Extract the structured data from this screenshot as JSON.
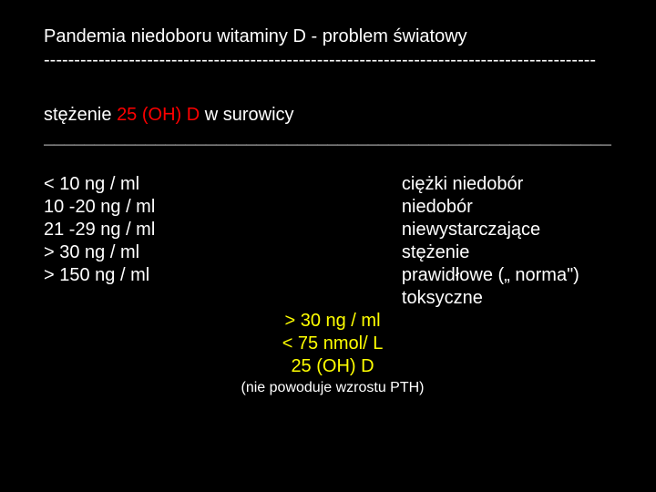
{
  "title": "Pandemia niedoboru witaminy D -  problem światowy",
  "dashline": "-------------------------------------------------------------------------------------------",
  "subtitle_pre": "stężenie ",
  "subtitle_red": "25 (OH) D",
  "subtitle_post": "  w surowicy",
  "underline": "________________________________________________________",
  "ranges": {
    "r0": {
      "range": "< 10 ng / ml",
      "desc": "ciężki niedobór"
    },
    "r1": {
      "range": "10 -20 ng / ml",
      "desc": "niedobór"
    },
    "r2": {
      "range": "21 -29 ng / ml",
      "desc": "niewystarczające stężenie"
    },
    "r3": {
      "range": "> 30 ng / ml",
      "desc": "prawidłowe („ norma\")"
    },
    "r4": {
      "range": "> 150 ng / ml",
      "desc": "toksyczne"
    }
  },
  "callout": {
    "line1_a": "> 30 ",
    "line1_b": "ng",
    "line1_c": " / ml",
    "line2": "< 75 nmol/ L",
    "line3": "25 (OH) D",
    "note": "(nie powoduje wzrostu PTH)"
  },
  "colors": {
    "background": "#000000",
    "text": "#ffffff",
    "accent_red": "#ff0000",
    "accent_yellow": "#ffff00"
  }
}
